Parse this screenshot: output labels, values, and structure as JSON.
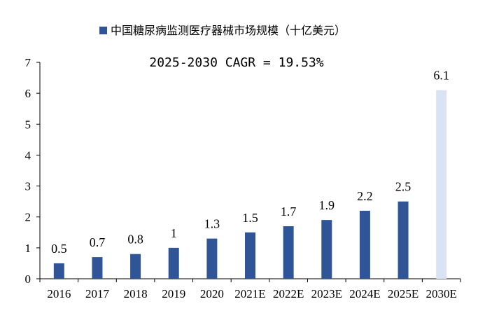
{
  "chart_data": {
    "type": "bar",
    "title": "",
    "xlabel": "",
    "ylabel": "",
    "ylim": [
      0,
      7
    ],
    "yticks": [
      "0",
      "1",
      "2",
      "3",
      "4",
      "5",
      "6",
      "7"
    ],
    "categories": [
      "2016",
      "2017",
      "2018",
      "2019",
      "2020",
      "2021E",
      "2022E",
      "2023E",
      "2024E",
      "2025E",
      "2030E"
    ],
    "series": [
      {
        "name": "中国糖尿病监测医疗器械市场规模（十亿美元）",
        "values": [
          0.5,
          0.7,
          0.8,
          1,
          1.3,
          1.5,
          1.7,
          1.9,
          2.2,
          2.5,
          6.1
        ],
        "labels": [
          "0.5",
          "0.7",
          "0.8",
          "1",
          "1.3",
          "1.5",
          "1.7",
          "1.9",
          "2.2",
          "2.5",
          "6.1"
        ],
        "colors": [
          "#2F5597",
          "#2F5597",
          "#2F5597",
          "#2F5597",
          "#2F5597",
          "#2F5597",
          "#2F5597",
          "#2F5597",
          "#2F5597",
          "#2F5597",
          "#DAE3F3"
        ]
      }
    ],
    "legend_position": "top-center",
    "grid": false,
    "annotation": "2025-2030 CAGR = 19.53%"
  }
}
